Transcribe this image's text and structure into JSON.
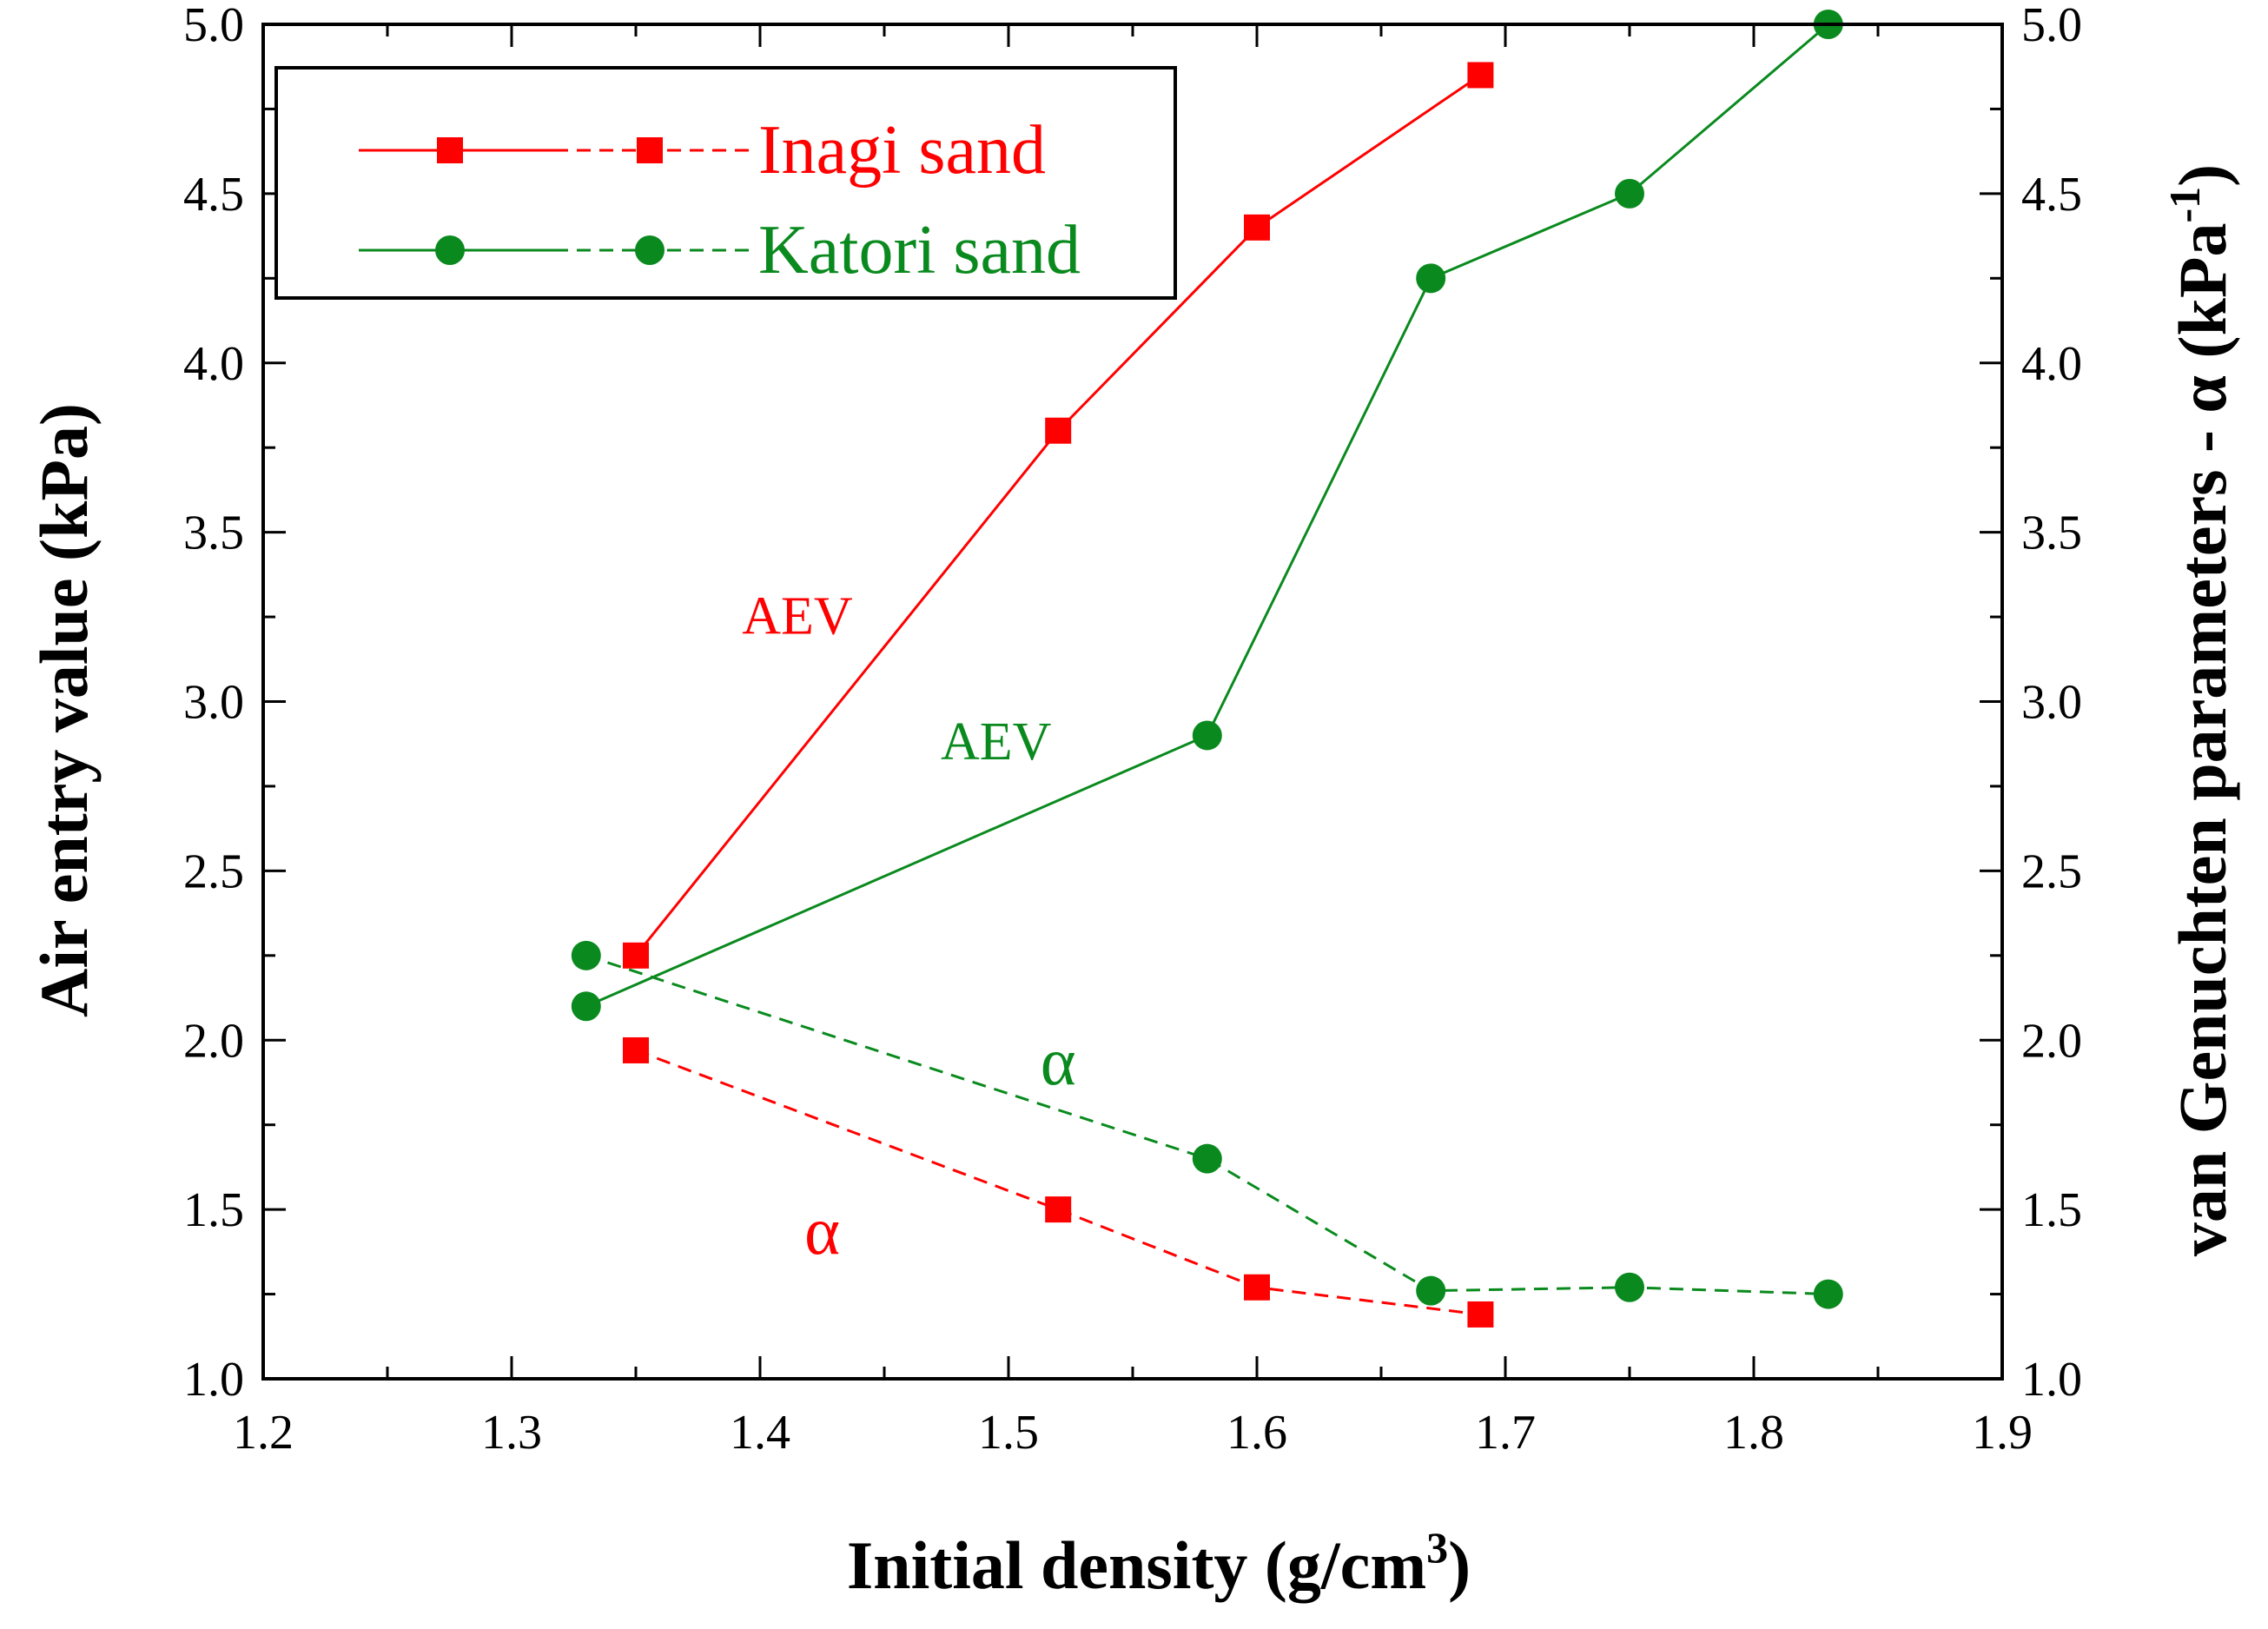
{
  "chart_data": {
    "type": "line",
    "xlabel_main": "Initial density (g/cm",
    "xlabel_sup": "3",
    "xlabel_close": ")",
    "ylabel_left": "Air entry value (kPa)",
    "ylabel_right_main": "van Genuchten parameters - α (kPa",
    "ylabel_right_sup": "-1",
    "ylabel_right_close": ")",
    "xlim": [
      1.2,
      1.9
    ],
    "ylim": [
      1.0,
      5.0
    ],
    "x_ticks": [
      "1.2",
      "1.3",
      "1.4",
      "1.5",
      "1.6",
      "1.7",
      "1.8",
      "1.9"
    ],
    "y_ticks": [
      "1.0",
      "1.5",
      "2.0",
      "2.5",
      "3.0",
      "3.5",
      "4.0",
      "4.5",
      "5.0"
    ],
    "legend_position": "top-left",
    "series": [
      {
        "name": "Inagi sand",
        "parameter": "AEV",
        "color": "#ff0000",
        "marker": "square",
        "line_style": "solid",
        "x": [
          1.35,
          1.52,
          1.6,
          1.69
        ],
        "y": [
          2.25,
          3.8,
          4.4,
          4.85
        ]
      },
      {
        "name": "Inagi sand",
        "parameter": "α",
        "color": "#ff0000",
        "marker": "square",
        "line_style": "dashed",
        "x": [
          1.35,
          1.52,
          1.6,
          1.69
        ],
        "y": [
          1.97,
          1.5,
          1.27,
          1.19
        ]
      },
      {
        "name": "Katori sand",
        "parameter": "AEV",
        "color": "#0a8a1e",
        "marker": "circle",
        "line_style": "solid",
        "x": [
          1.33,
          1.58,
          1.67,
          1.75,
          1.83
        ],
        "y": [
          2.1,
          2.9,
          4.25,
          4.5,
          5.0
        ]
      },
      {
        "name": "Katori sand",
        "parameter": "α",
        "color": "#0a8a1e",
        "marker": "circle",
        "line_style": "dashed",
        "x": [
          1.33,
          1.58,
          1.67,
          1.75,
          1.83
        ],
        "y": [
          2.25,
          1.65,
          1.26,
          1.27,
          1.25
        ]
      }
    ],
    "legend": [
      {
        "label": "Inagi sand",
        "color": "#ff0000",
        "marker": "square"
      },
      {
        "label": "Katori sand",
        "color": "#0a8a1e",
        "marker": "circle"
      }
    ],
    "annotations": [
      {
        "text": "AEV",
        "x": 1.415,
        "y": 3.2,
        "color": "#ff0000",
        "style": "small"
      },
      {
        "text": "AEV",
        "x": 1.495,
        "y": 2.83,
        "color": "#0a8a1e",
        "style": "small"
      },
      {
        "text": "α",
        "x": 1.52,
        "y": 1.87,
        "color": "#0a8a1e",
        "style": "large"
      },
      {
        "text": "α",
        "x": 1.425,
        "y": 1.37,
        "color": "#ff0000",
        "style": "large"
      }
    ]
  }
}
